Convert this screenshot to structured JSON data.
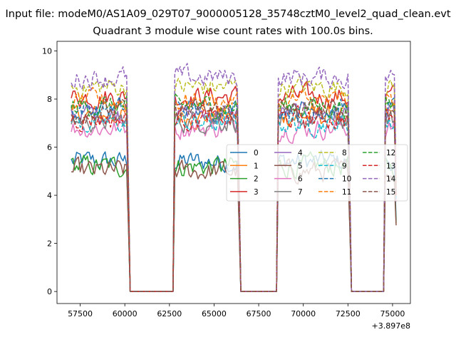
{
  "chart_data": {
    "type": "line",
    "suptitle": "Input file: modeM0/AS1A09_029T07_9000005128_35748cztM0_level2_quad_clean.evt",
    "title": "Quadrant 3 module wise count rates with 100.0s bins.",
    "xlabel": "",
    "ylabel": "",
    "x_offset_label": "+3.897e8",
    "xlim": [
      56200,
      76000
    ],
    "ylim": [
      -0.5,
      10.4
    ],
    "x_ticks": [
      57500,
      60000,
      62500,
      65000,
      67500,
      70000,
      72500,
      75000
    ],
    "x_tick_labels": [
      "57500",
      "60000",
      "62500",
      "65000",
      "67500",
      "70000",
      "72500",
      "75000"
    ],
    "y_ticks": [
      0,
      2,
      4,
      6,
      8,
      10
    ],
    "y_tick_labels": [
      "0",
      "2",
      "4",
      "6",
      "8",
      "10"
    ],
    "x_start": 57000,
    "bin": 100,
    "segments": [
      [
        57000,
        60200
      ],
      [
        62800,
        66400
      ],
      [
        68600,
        72600
      ],
      [
        74600,
        75200
      ]
    ],
    "gap_value": 0,
    "legend_position": "center-right",
    "series": [
      {
        "name": "0",
        "color": "#1f77b4",
        "dashed": false,
        "level": 5.4
      },
      {
        "name": "1",
        "color": "#ff7f0e",
        "dashed": false,
        "level": 7.3
      },
      {
        "name": "2",
        "color": "#2ca02c",
        "dashed": false,
        "level": 5.2
      },
      {
        "name": "3",
        "color": "#d62728",
        "dashed": false,
        "level": 8.1
      },
      {
        "name": "4",
        "color": "#9467bd",
        "dashed": false,
        "level": 7.4
      },
      {
        "name": "5",
        "color": "#8c564b",
        "dashed": false,
        "level": 5.0
      },
      {
        "name": "6",
        "color": "#e377c2",
        "dashed": false,
        "level": 6.8
      },
      {
        "name": "7",
        "color": "#7f7f7f",
        "dashed": false,
        "level": 7.1
      },
      {
        "name": "8",
        "color": "#bcbd22",
        "dashed": true,
        "level": 8.5
      },
      {
        "name": "9",
        "color": "#17becf",
        "dashed": true,
        "level": 7.0
      },
      {
        "name": "10",
        "color": "#1f77b4",
        "dashed": true,
        "level": 7.6
      },
      {
        "name": "11",
        "color": "#ff7f0e",
        "dashed": true,
        "level": 7.9
      },
      {
        "name": "12",
        "color": "#2ca02c",
        "dashed": true,
        "level": 7.7
      },
      {
        "name": "13",
        "color": "#d62728",
        "dashed": true,
        "level": 7.2
      },
      {
        "name": "14",
        "color": "#9467bd",
        "dashed": true,
        "level": 8.9
      },
      {
        "name": "15",
        "color": "#8c564b",
        "dashed": true,
        "level": 7.5
      }
    ]
  }
}
